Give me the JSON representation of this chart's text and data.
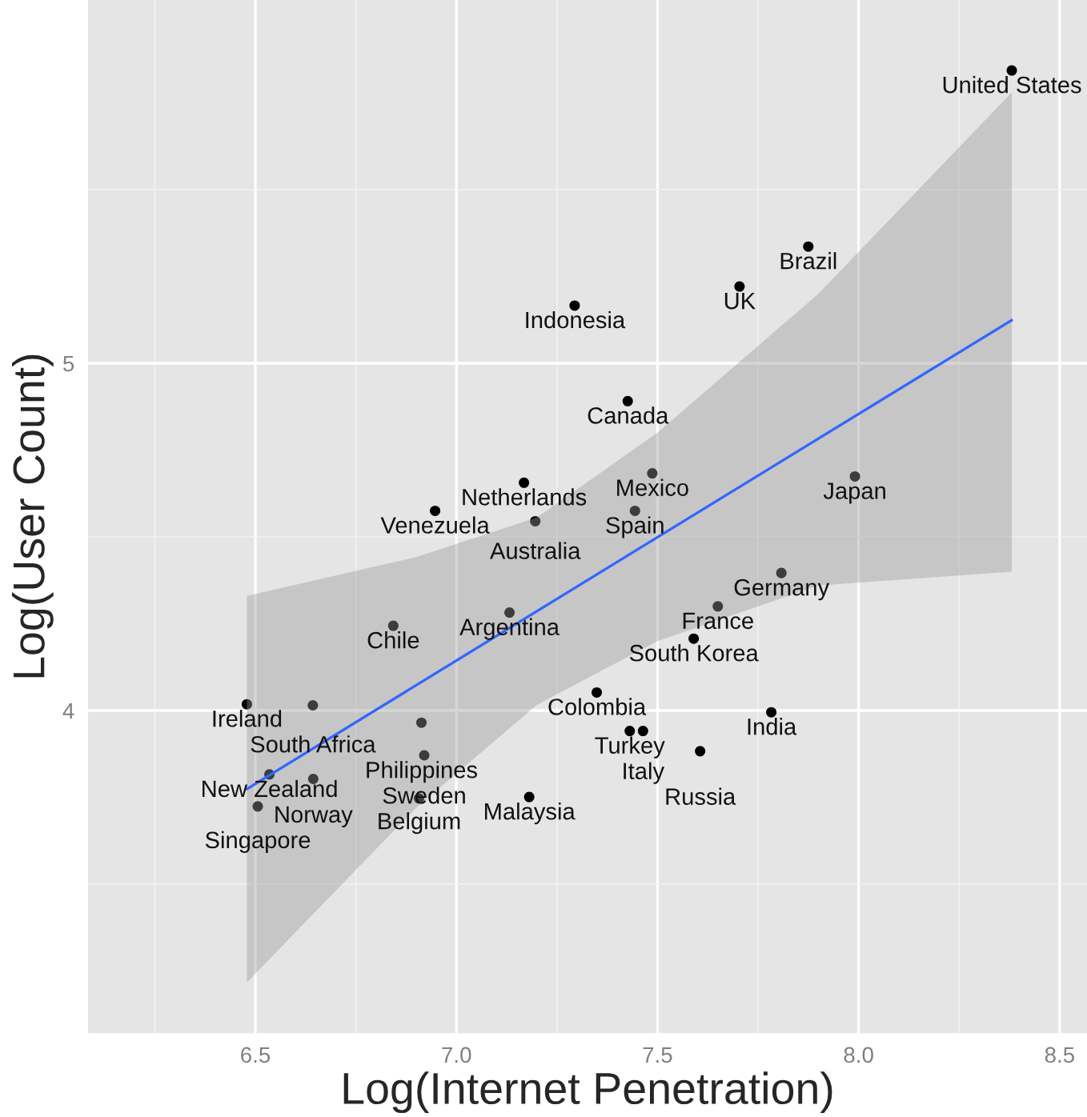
{
  "chart_data": {
    "type": "scatter",
    "xlabel": "Log(Internet Penetration)",
    "ylabel": "Log(User Count)",
    "xlim": [
      6.084,
      8.568
    ],
    "ylim": [
      3.071,
      6.046
    ],
    "xticks": [
      6.5,
      {
        "value": 7,
        "label": "7.0"
      },
      7.5,
      {
        "value": 8,
        "label": "8.0"
      },
      8.5
    ],
    "yticks": [
      4,
      5
    ],
    "grid": true,
    "series": [
      {
        "marker": "circle",
        "color": "#000000",
        "x": [
          8.381,
          7.875,
          7.704,
          7.294,
          7.426,
          7.487,
          7.991,
          7.168,
          6.947,
          7.196,
          7.444,
          7.808,
          7.65,
          6.843,
          7.132,
          7.59,
          7.349,
          6.479,
          6.643,
          7.783,
          6.913,
          7.431,
          7.464,
          7.606,
          6.92,
          6.535,
          6.644,
          6.506,
          6.907,
          7.181
        ],
        "values": [
          5.843,
          5.336,
          5.221,
          5.166,
          4.891,
          4.683,
          4.674,
          4.656,
          4.575,
          4.545,
          4.575,
          4.396,
          4.3,
          4.244,
          4.282,
          4.207,
          4.052,
          4.018,
          4.015,
          3.995,
          3.965,
          3.941,
          3.941,
          3.883,
          3.871,
          3.816,
          3.803,
          3.724,
          3.747,
          3.751
        ]
      },
      {
        "type": "line",
        "color": "#3366ff",
        "x": [
          6.479,
          6.9,
          7.2,
          7.5,
          7.9,
          8.381
        ],
        "values": [
          3.774,
          4.073,
          4.286,
          4.499,
          4.783,
          5.124
        ],
        "lower": [
          3.217,
          3.72,
          4.016,
          4.2,
          4.36,
          4.4
        ],
        "upper": [
          4.33,
          4.442,
          4.556,
          4.8,
          5.2,
          5.78
        ]
      }
    ],
    "annotations": [
      {
        "text": "United States",
        "x": 8.381,
        "y": 5.843
      },
      {
        "text": "Brazil",
        "x": 7.875,
        "y": 5.336
      },
      {
        "text": "UK",
        "x": 7.704,
        "y": 5.221
      },
      {
        "text": "Indonesia",
        "x": 7.294,
        "y": 5.166
      },
      {
        "text": "Canada",
        "x": 7.426,
        "y": 4.891
      },
      {
        "text": "Mexico",
        "x": 7.487,
        "y": 4.683
      },
      {
        "text": "Japan",
        "x": 7.991,
        "y": 4.674
      },
      {
        "text": "Netherlands",
        "x": 7.168,
        "y": 4.656
      },
      {
        "text": "Venezuela",
        "x": 6.947,
        "y": 4.575
      },
      {
        "text": "Australia",
        "x": 7.196,
        "y": 4.545
      },
      {
        "text": "Spain",
        "x": 7.444,
        "y": 4.575
      },
      {
        "text": "Germany",
        "x": 7.808,
        "y": 4.396
      },
      {
        "text": "France",
        "x": 7.65,
        "y": 4.3
      },
      {
        "text": "Chile",
        "x": 6.843,
        "y": 4.244
      },
      {
        "text": "Argentina",
        "x": 7.132,
        "y": 4.282
      },
      {
        "text": "South Korea",
        "x": 7.59,
        "y": 4.207
      },
      {
        "text": "Colombia",
        "x": 7.349,
        "y": 4.052
      },
      {
        "text": "Ireland",
        "x": 6.479,
        "y": 4.018
      },
      {
        "text": "South Africa",
        "x": 6.643,
        "y": 4.015
      },
      {
        "text": "India",
        "x": 7.783,
        "y": 3.995
      },
      {
        "text": "Philippines",
        "x": 6.913,
        "y": 3.965
      },
      {
        "text": "Turkey",
        "x": 7.431,
        "y": 3.941
      },
      {
        "text": "Italy",
        "x": 7.464,
        "y": 3.941
      },
      {
        "text": "Russia",
        "x": 7.606,
        "y": 3.883
      },
      {
        "text": "Sweden",
        "x": 6.92,
        "y": 3.871
      },
      {
        "text": "New Zealand",
        "x": 6.535,
        "y": 3.816
      },
      {
        "text": "Norway",
        "x": 6.644,
        "y": 3.803
      },
      {
        "text": "Singapore",
        "x": 6.506,
        "y": 3.724
      },
      {
        "text": "Belgium",
        "x": 6.907,
        "y": 3.747
      },
      {
        "text": "Malaysia",
        "x": 7.181,
        "y": 3.751
      }
    ]
  }
}
